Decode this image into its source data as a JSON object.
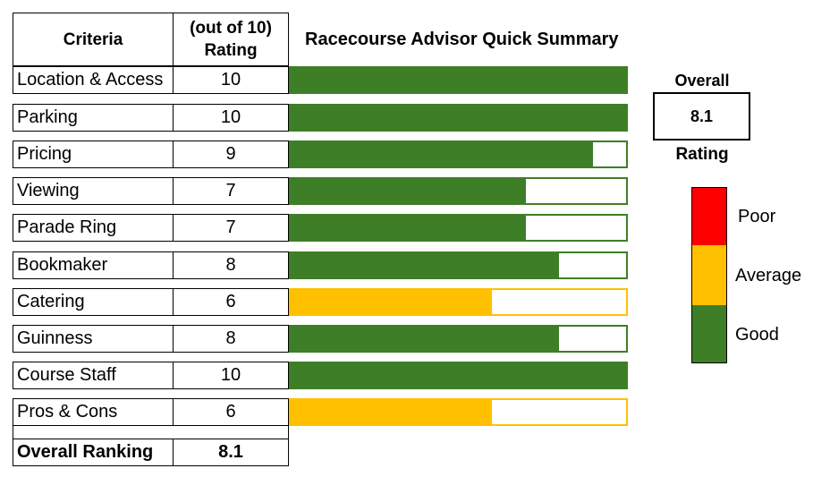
{
  "table": {
    "criteria_header": "Criteria",
    "rating_header_line1": "(out of 10)",
    "rating_header_line2": "Rating",
    "total_label": "Overall Ranking",
    "total_value": "8.1"
  },
  "chart_data": {
    "type": "bar",
    "title": "Racecourse Advisor Quick Summary",
    "categories": [
      "Location & Access",
      "Parking",
      "Pricing",
      "Viewing",
      "Parade Ring",
      "Bookmaker",
      "Catering",
      "Guinness",
      "Course Staff",
      "Pros & Cons"
    ],
    "values": [
      10,
      10,
      9,
      7,
      7,
      8,
      6,
      8,
      10,
      6
    ],
    "xlim": [
      0,
      10
    ],
    "grid": false,
    "orientation": "horizontal",
    "value_labels": [
      "10",
      "10",
      "9",
      "7",
      "7",
      "8",
      "6",
      "8",
      "10",
      "6"
    ]
  },
  "overall": {
    "top_label": "Overall",
    "value": "8.1",
    "bottom_label": "Rating"
  },
  "legend": {
    "items": [
      {
        "label": "Poor",
        "color": "#ff0000"
      },
      {
        "label": "Average",
        "color": "#ffc000"
      },
      {
        "label": "Good",
        "color": "#3e7e27"
      }
    ]
  },
  "colors": {
    "good": "#3e7e27",
    "average": "#ffc000"
  }
}
